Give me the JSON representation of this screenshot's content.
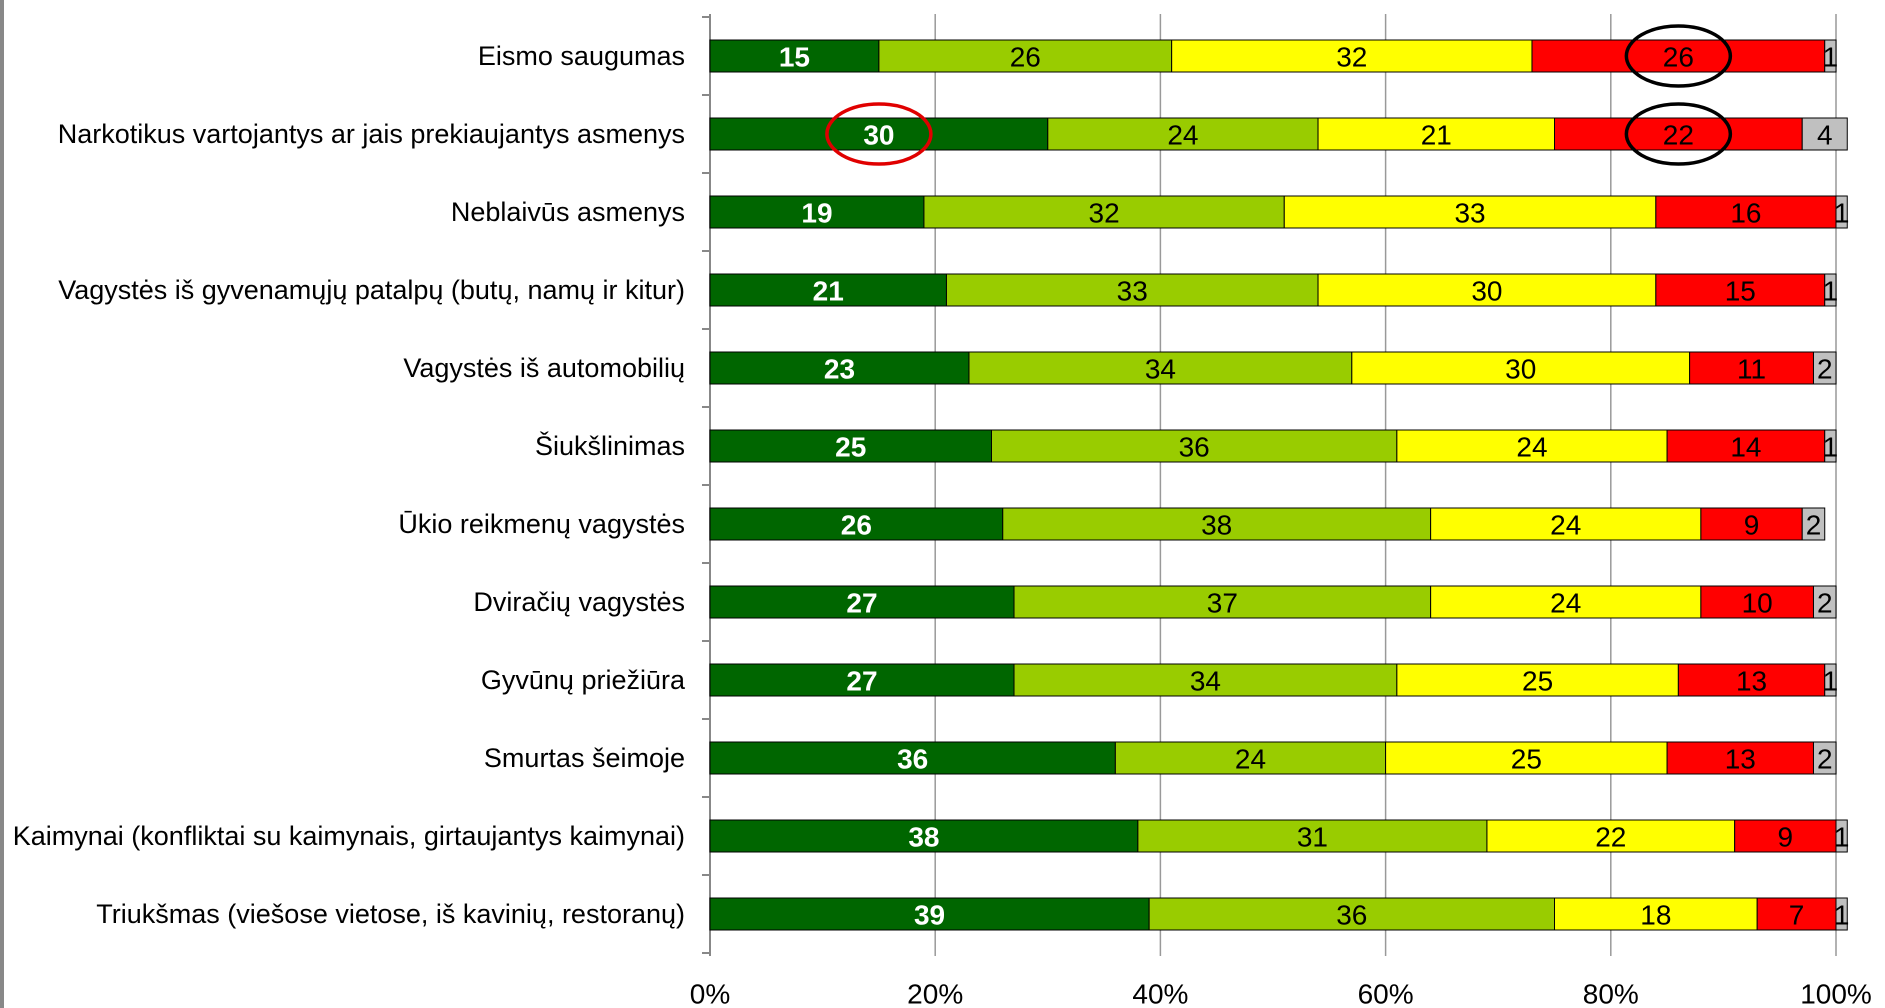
{
  "chart_data": {
    "type": "stacked-bar-horizontal",
    "categories": [
      "Eismo saugumas",
      "Narkotikus vartojantys ar jais prekiaujantys asmenys",
      "Neblaivūs asmenys",
      "Vagystės iš gyvenamųjų patalpų (butų, namų ir kitur)",
      "Vagystės iš automobilių",
      "Šiukšlinimas",
      "Ūkio reikmenų vagystės",
      "Dviračių vagystės",
      "Gyvūnų priežiūra",
      "Smurtas šeimoje",
      "Kaimynai (konfliktai su kaimynais, girtaujantys kaimynai)",
      "Triukšmas (viešose vietose, iš kavinių, restoranų)"
    ],
    "series": [
      {
        "color": "#006600",
        "values": [
          15,
          30,
          19,
          21,
          23,
          25,
          26,
          27,
          27,
          36,
          38,
          39
        ]
      },
      {
        "color": "#99cc00",
        "values": [
          26,
          24,
          32,
          33,
          34,
          36,
          38,
          37,
          34,
          24,
          31,
          36
        ]
      },
      {
        "color": "#ffff00",
        "values": [
          32,
          21,
          33,
          30,
          30,
          24,
          24,
          24,
          25,
          25,
          22,
          18
        ]
      },
      {
        "color": "#ff0000",
        "values": [
          26,
          22,
          16,
          15,
          11,
          14,
          9,
          10,
          13,
          13,
          9,
          7
        ]
      },
      {
        "color": "#c0c0c0",
        "values": [
          1,
          4,
          1,
          1,
          2,
          1,
          2,
          2,
          1,
          2,
          1,
          1
        ]
      }
    ],
    "xlim": [
      0,
      100
    ],
    "xticks": [
      {
        "value": 0,
        "label": "0%"
      },
      {
        "value": 20,
        "label": "20%"
      },
      {
        "value": 40,
        "label": "40%"
      },
      {
        "value": 60,
        "label": "60%"
      },
      {
        "value": 80,
        "label": "80%"
      },
      {
        "value": 100,
        "label": "100%"
      }
    ],
    "grid": true
  }
}
